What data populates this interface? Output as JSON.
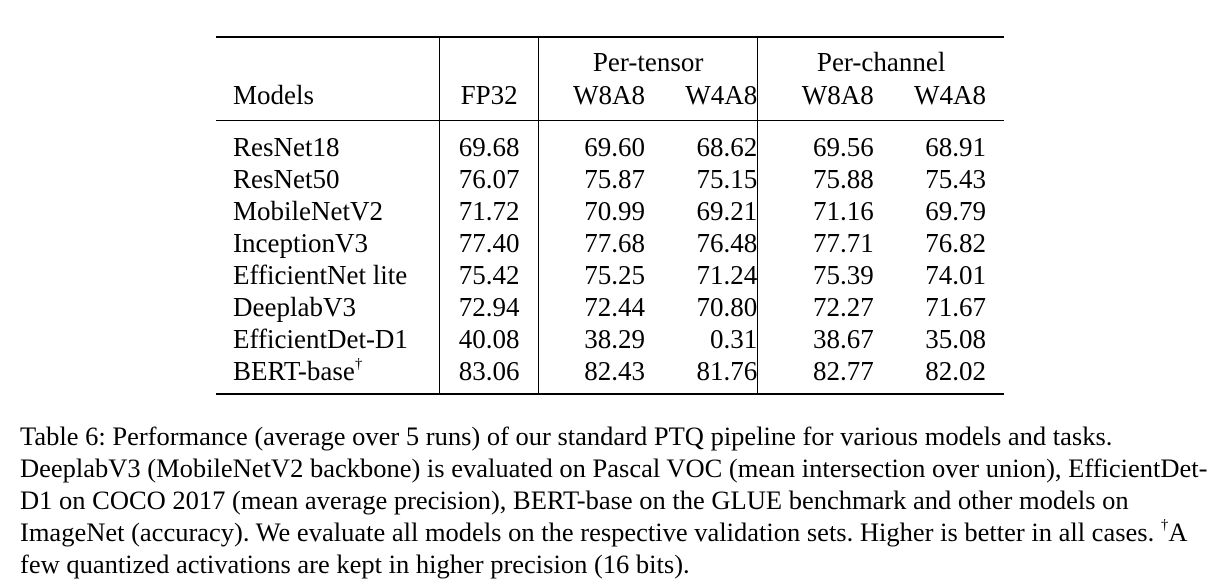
{
  "table": {
    "headers": {
      "models": "Models",
      "fp32": "FP32",
      "per_tensor": "Per-tensor",
      "per_channel": "Per-channel",
      "w8a8": "W8A8",
      "w4a8": "W4A8"
    },
    "rows": [
      {
        "model": "ResNet18",
        "sup": "",
        "fp32": "69.68",
        "pt_w8a8": "69.60",
        "pt_w4a8": "68.62",
        "pc_w8a8": "69.56",
        "pc_w4a8": "68.91"
      },
      {
        "model": "ResNet50",
        "sup": "",
        "fp32": "76.07",
        "pt_w8a8": "75.87",
        "pt_w4a8": "75.15",
        "pc_w8a8": "75.88",
        "pc_w4a8": "75.43"
      },
      {
        "model": "MobileNetV2",
        "sup": "",
        "fp32": "71.72",
        "pt_w8a8": "70.99",
        "pt_w4a8": "69.21",
        "pc_w8a8": "71.16",
        "pc_w4a8": "69.79"
      },
      {
        "model": "InceptionV3",
        "sup": "",
        "fp32": "77.40",
        "pt_w8a8": "77.68",
        "pt_w4a8": "76.48",
        "pc_w8a8": "77.71",
        "pc_w4a8": "76.82"
      },
      {
        "model": "EfficientNet lite",
        "sup": "",
        "fp32": "75.42",
        "pt_w8a8": "75.25",
        "pt_w4a8": "71.24",
        "pc_w8a8": "75.39",
        "pc_w4a8": "74.01"
      },
      {
        "model": "DeeplabV3",
        "sup": "",
        "fp32": "72.94",
        "pt_w8a8": "72.44",
        "pt_w4a8": "70.80",
        "pc_w8a8": "72.27",
        "pc_w4a8": "71.67"
      },
      {
        "model": "EfficientDet-D1",
        "sup": "",
        "fp32": "40.08",
        "pt_w8a8": "38.29",
        "pt_w4a8": "0.31",
        "pc_w8a8": "38.67",
        "pc_w4a8": "35.08"
      },
      {
        "model": "BERT-base",
        "sup": "†",
        "fp32": "83.06",
        "pt_w8a8": "82.43",
        "pt_w4a8": "81.76",
        "pc_w8a8": "82.77",
        "pc_w4a8": "82.02"
      }
    ]
  },
  "caption": {
    "part1": "Table 6: Performance (average over 5 runs) of our standard PTQ pipeline for various models and tasks. DeeplabV3 (MobileNetV2 backbone) is evaluated on Pascal VOC (mean intersection over union), EfficientDet-D1 on COCO 2017 (mean average precision), BERT-base on the GLUE benchmark and other models on ImageNet (accuracy). We evaluate all models on the respective validation sets. Higher is better in all cases. ",
    "dagger": "†",
    "part2": "A few quantized activations are kept in higher precision (16 bits)."
  }
}
